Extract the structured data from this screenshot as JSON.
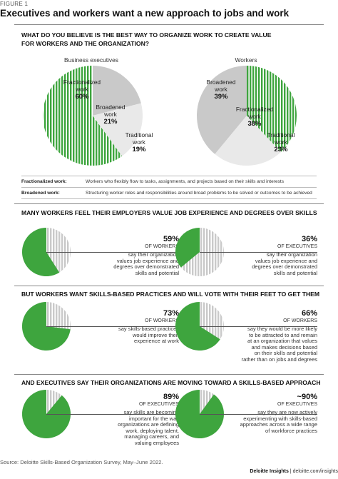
{
  "figure_label": "FIGURE 1",
  "title": "Executives and workers want a new approach to jobs and work",
  "section1": {
    "heading_line1": "WHAT DO YOU BELIEVE IS THE BEST WAY TO ORGANIZE WORK TO CREATE VALUE",
    "heading_line2": "FOR WORKERS AND THE ORGANIZATION?"
  },
  "definitions": [
    {
      "term": "Fractionalized work:",
      "text": "Workers who flexibly flow to tasks, assignments, and projects based on their skills and interests"
    },
    {
      "term": "Broadened work:",
      "text": "Structuring worker roles and responsibilities around broad problems to be solved or outcomes to be achieved"
    }
  ],
  "section2": {
    "heading": "MANY WORKERS FEEL THEIR EMPLOYERS VALUE JOB EXPERIENCE AND DEGREES OVER SKILLS"
  },
  "section3": {
    "heading": "BUT WORKERS WANT SKILLS-BASED PRACTICES AND WILL VOTE WITH THEIR FEET TO GET THEM"
  },
  "section4": {
    "heading": "AND EXECUTIVES SAY THEIR ORGANIZATIONS ARE MOVING TOWARD A SKILLS-BASED APPROACH"
  },
  "colors": {
    "green": "#3ea53e",
    "gray": "#c9c9c9",
    "light": "#e9e9e9",
    "rule": "#888888"
  },
  "chart_data": [
    {
      "type": "pie",
      "title": "Business executives",
      "slices": [
        {
          "label_line1": "Fractionalized",
          "label_line2": "work",
          "value": 60,
          "value_label": "60%",
          "color": "#3ea53e",
          "pattern": "stripes"
        },
        {
          "label_line1": "Broadened",
          "label_line2": "work",
          "value": 21,
          "value_label": "21%",
          "color": "#c9c9c9"
        },
        {
          "label_line1": "Traditional",
          "label_line2": "work",
          "value": 19,
          "value_label": "19%",
          "color": "#e9e9e9"
        }
      ]
    },
    {
      "type": "pie",
      "title": "Workers",
      "slices": [
        {
          "label_line1": "Broadened",
          "label_line2": "work",
          "value": 39,
          "value_label": "39%",
          "color": "#c9c9c9"
        },
        {
          "label_line1": "Fractionalized",
          "label_line2": "work",
          "value": 38,
          "value_label": "38%",
          "color": "#3ea53e",
          "pattern": "stripes"
        },
        {
          "label_line1": "Traditional",
          "label_line2": "work",
          "value": 23,
          "value_label": "23%",
          "color": "#e9e9e9"
        }
      ]
    },
    {
      "type": "pie",
      "value": 59,
      "value_label": "59%",
      "group": "OF WORKERS",
      "text": [
        "say their organization",
        "values job experience and",
        "degrees over demonstrated",
        "skills and potential"
      ]
    },
    {
      "type": "pie",
      "value": 36,
      "value_label": "36%",
      "group": "OF EXECUTIVES",
      "text": [
        "say their organization",
        "values job experience and",
        "degrees over demonstrated",
        "skills and potential"
      ]
    },
    {
      "type": "pie",
      "value": 73,
      "value_label": "73%",
      "group": "OF WORKERS",
      "text": [
        "say skills-based practices",
        "would improve their",
        "experience at work"
      ]
    },
    {
      "type": "pie",
      "value": 66,
      "value_label": "66%",
      "group": "OF WORKERS",
      "text": [
        "say they would be more likely",
        "to be attracted to and remain",
        "at an organization that values",
        "and makes decisions based",
        "on their skills and potential",
        "rather than on jobs and degrees"
      ]
    },
    {
      "type": "pie",
      "value": 89,
      "value_label": "89%",
      "group": "OF EXECUTIVES",
      "text": [
        "say skills are becoming",
        "important for the way",
        "organizations are defining",
        "work, deploying talent,",
        "managing careers, and",
        "valuing employees"
      ]
    },
    {
      "type": "pie",
      "value": 90,
      "value_label": "~90%",
      "group": "OF EXECUTIVES",
      "text": [
        "say they are now actively",
        "experimenting with skills-based",
        "approaches across a wide range",
        "of workforce practices"
      ]
    }
  ],
  "source": "Source: Deloitte Skills-Based Organization Survey, May–June 2022.",
  "brand": {
    "name": "Deloitte Insights",
    "sep": " | ",
    "url": "deloitte.com/insights"
  }
}
